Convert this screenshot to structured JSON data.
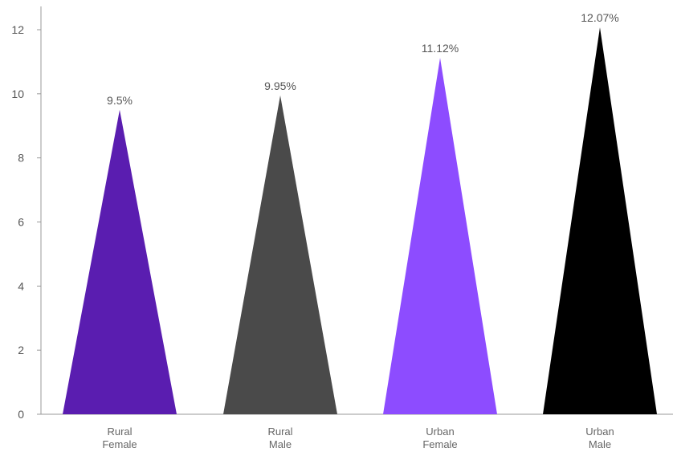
{
  "chart_data": {
    "type": "bar",
    "mark_shape": "triangle",
    "categories": [
      [
        "Rural",
        "Female"
      ],
      [
        "Rural",
        "Male"
      ],
      [
        "Urban",
        "Female"
      ],
      [
        "Urban",
        "Male"
      ]
    ],
    "values": [
      9.5,
      9.95,
      11.12,
      12.07
    ],
    "data_labels": [
      "9.5%",
      "9.95%",
      "11.12%",
      "12.07%"
    ],
    "colors": [
      "#5a1db0",
      "#4a4a4a",
      "#8d4cff",
      "#000000"
    ],
    "ylim": [
      0,
      12
    ],
    "yticks": [
      "0",
      "2",
      "4",
      "6",
      "8",
      "10",
      "12"
    ],
    "grid": false,
    "legend": "none",
    "axis_color": "#999999"
  }
}
